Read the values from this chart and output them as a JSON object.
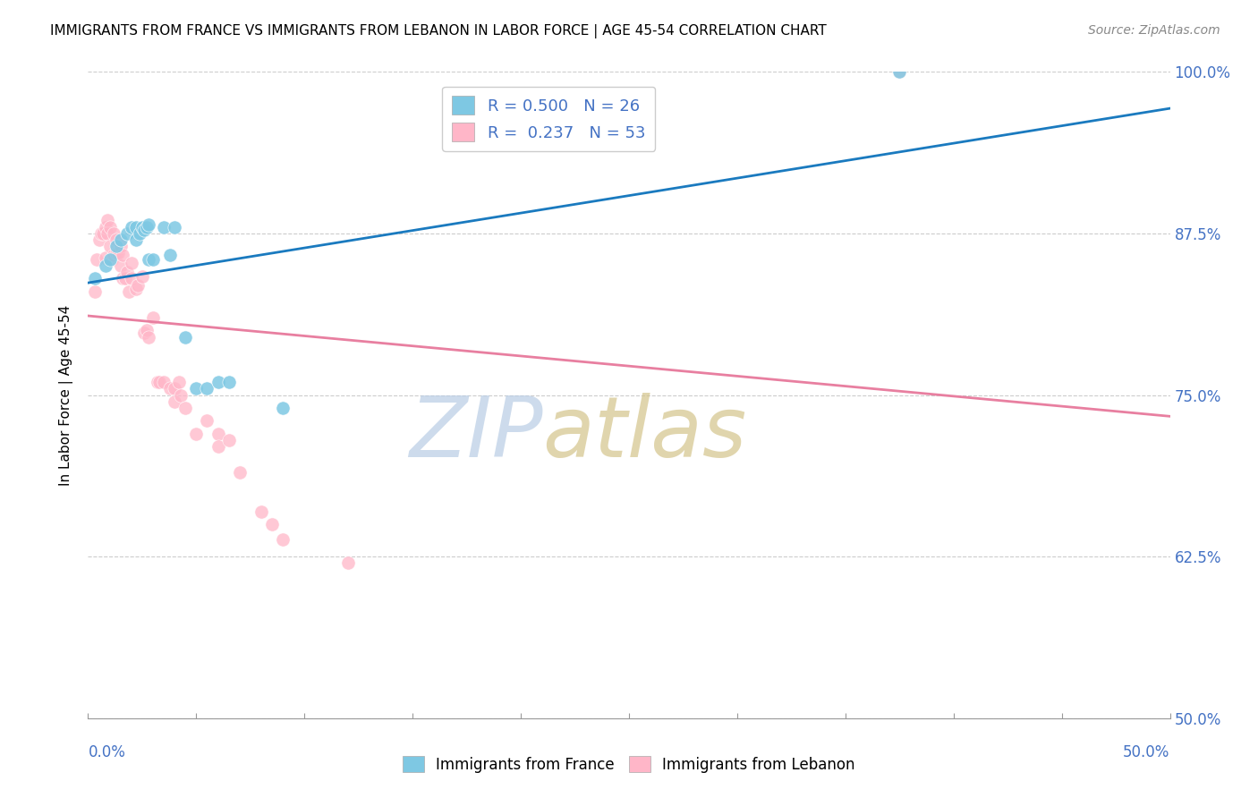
{
  "title": "IMMIGRANTS FROM FRANCE VS IMMIGRANTS FROM LEBANON IN LABOR FORCE | AGE 45-54 CORRELATION CHART",
  "source": "Source: ZipAtlas.com",
  "ylabel": "In Labor Force | Age 45-54",
  "ytick_vals": [
    0.5,
    0.625,
    0.75,
    0.875,
    1.0
  ],
  "ytick_labels": [
    "50.0%",
    "62.5%",
    "75.0%",
    "87.5%",
    "100.0%"
  ],
  "xlim": [
    0.0,
    0.5
  ],
  "ylim": [
    0.5,
    1.0
  ],
  "france_color": "#7ec8e3",
  "lebanon_color": "#ffb6c8",
  "france_line_color": "#1a7abf",
  "lebanon_line_color": "#e87fa0",
  "legend_france_r": "0.500",
  "legend_france_n": "26",
  "legend_lebanon_r": "0.237",
  "legend_lebanon_n": "53",
  "france_x": [
    0.003,
    0.008,
    0.01,
    0.013,
    0.015,
    0.018,
    0.02,
    0.022,
    0.022,
    0.024,
    0.025,
    0.026,
    0.027,
    0.028,
    0.028,
    0.03,
    0.035,
    0.038,
    0.04,
    0.045,
    0.05,
    0.055,
    0.06,
    0.065,
    0.09,
    0.375
  ],
  "france_y": [
    0.84,
    0.85,
    0.855,
    0.865,
    0.87,
    0.875,
    0.88,
    0.88,
    0.87,
    0.875,
    0.88,
    0.878,
    0.88,
    0.882,
    0.855,
    0.855,
    0.88,
    0.858,
    0.88,
    0.795,
    0.755,
    0.755,
    0.76,
    0.76,
    0.74,
    1.0
  ],
  "lebanon_x": [
    0.003,
    0.004,
    0.005,
    0.006,
    0.007,
    0.008,
    0.008,
    0.009,
    0.009,
    0.01,
    0.01,
    0.011,
    0.012,
    0.012,
    0.013,
    0.013,
    0.014,
    0.015,
    0.015,
    0.016,
    0.016,
    0.017,
    0.018,
    0.019,
    0.02,
    0.02,
    0.022,
    0.023,
    0.025,
    0.026,
    0.027,
    0.028,
    0.03,
    0.032,
    0.033,
    0.035,
    0.038,
    0.04,
    0.04,
    0.042,
    0.043,
    0.045,
    0.05,
    0.055,
    0.06,
    0.06,
    0.065,
    0.07,
    0.08,
    0.085,
    0.09,
    0.12,
    0.375
  ],
  "lebanon_y": [
    0.83,
    0.855,
    0.87,
    0.875,
    0.875,
    0.88,
    0.856,
    0.885,
    0.875,
    0.88,
    0.865,
    0.855,
    0.875,
    0.858,
    0.87,
    0.86,
    0.86,
    0.865,
    0.85,
    0.858,
    0.84,
    0.84,
    0.845,
    0.83,
    0.852,
    0.84,
    0.832,
    0.835,
    0.842,
    0.798,
    0.8,
    0.795,
    0.81,
    0.76,
    0.76,
    0.76,
    0.755,
    0.755,
    0.745,
    0.76,
    0.75,
    0.74,
    0.72,
    0.73,
    0.72,
    0.71,
    0.715,
    0.69,
    0.66,
    0.65,
    0.638,
    0.62,
    1.0
  ],
  "watermark_zip_color": "#b8cce4",
  "watermark_atlas_color": "#d4c48a"
}
